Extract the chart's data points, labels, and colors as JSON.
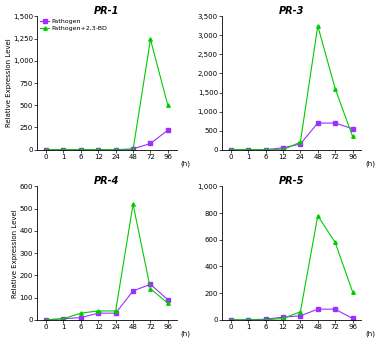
{
  "x_ticks": [
    0,
    1,
    6,
    12,
    24,
    48,
    72,
    96
  ],
  "subplots": [
    {
      "title": "PR-1",
      "ylim": [
        0,
        1500
      ],
      "yticks": [
        0,
        250,
        500,
        750,
        1000,
        1250,
        1500
      ],
      "ytick_labels": [
        "0",
        "250",
        "500",
        "750",
        "1,000",
        "1,250",
        "1,500"
      ],
      "pathogen": [
        0,
        0,
        0,
        0,
        0,
        10,
        70,
        220
      ],
      "pathogen_bd": [
        0,
        0,
        0,
        0,
        0,
        0,
        1240,
        500
      ],
      "show_legend": true
    },
    {
      "title": "PR-3",
      "ylim": [
        0,
        3500
      ],
      "yticks": [
        0,
        500,
        1000,
        1500,
        2000,
        2500,
        3000,
        3500
      ],
      "ytick_labels": [
        "0",
        "500",
        "1,000",
        "1,500",
        "2,000",
        "2,500",
        "3,000",
        "3,500"
      ],
      "pathogen": [
        0,
        0,
        0,
        50,
        150,
        700,
        700,
        550
      ],
      "pathogen_bd": [
        0,
        0,
        0,
        0,
        200,
        3250,
        1600,
        350
      ],
      "show_legend": false
    },
    {
      "title": "PR-4",
      "ylim": [
        0,
        600
      ],
      "yticks": [
        0,
        100,
        200,
        300,
        400,
        500,
        600
      ],
      "ytick_labels": [
        "0",
        "100",
        "200",
        "300",
        "400",
        "500",
        "600"
      ],
      "pathogen": [
        0,
        5,
        10,
        30,
        30,
        130,
        160,
        90
      ],
      "pathogen_bd": [
        0,
        5,
        30,
        40,
        40,
        520,
        140,
        75
      ],
      "show_legend": false
    },
    {
      "title": "PR-5",
      "ylim": [
        0,
        1000
      ],
      "yticks": [
        0,
        200,
        400,
        600,
        800,
        1000
      ],
      "ytick_labels": [
        "0",
        "200",
        "400",
        "600",
        "800",
        "1,000"
      ],
      "pathogen": [
        0,
        0,
        5,
        20,
        30,
        80,
        80,
        10
      ],
      "pathogen_bd": [
        0,
        0,
        0,
        10,
        60,
        780,
        580,
        210
      ],
      "show_legend": false
    }
  ],
  "pathogen_color": "#9B30FF",
  "pathogen_bd_color": "#00CC00",
  "pathogen_label": "Pathogen",
  "pathogen_bd_label": "Pathogen+2,3-BD",
  "ylabel": "Relative Expression Level",
  "xlabel_suffix": "(h)",
  "tick_fontsize": 5.0,
  "title_fontsize": 7.0,
  "ylabel_fontsize": 5.0,
  "legend_fontsize": 4.5,
  "marker_size": 2.5,
  "line_width": 0.8
}
